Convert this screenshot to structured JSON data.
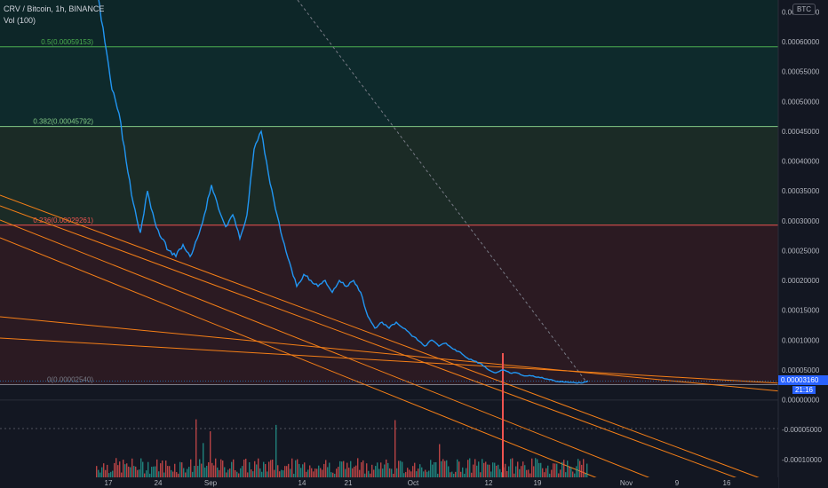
{
  "header": {
    "symbol_line": "CRV / Bitcoin, 1h, BINANCE",
    "volume_line": "Vol (100)"
  },
  "price_axis": {
    "currency_badge": "BTC",
    "current_price": "0.00003160",
    "countdown": "21:16"
  },
  "colors": {
    "background": "#131722",
    "price_line": "#2196f3",
    "trend_lines": "#f57f17",
    "fib_0_5": "#4caf50",
    "fib_0_382": "#81c784",
    "fib_0_236": "#ef5350",
    "fib_zero": "#787b86",
    "vol_up": "#26a69a",
    "vol_down": "#ef5350"
  },
  "chart_data": {
    "type": "line",
    "title": "",
    "xlabel": "",
    "ylabel": "",
    "ylim": [
      -0.00013,
      0.00067
    ],
    "x_tick_labels": [
      "17",
      "24",
      "Sep",
      "14",
      "21",
      "Oct",
      "12",
      "19",
      "Nov",
      "9",
      "16"
    ],
    "y_tick_labels": [
      "0.00065000",
      "0.00060000",
      "0.00055000",
      "0.00050000",
      "0.00045000",
      "0.00040000",
      "0.00035000",
      "0.00030000",
      "0.00025000",
      "0.00020000",
      "0.00015000",
      "0.00010000",
      "0.00005000",
      "0.00000000",
      "-0.00005000",
      "-0.00010000"
    ],
    "y_tick_values": [
      0.00065,
      0.0006,
      0.00055,
      0.0005,
      0.00045,
      0.0004,
      0.00035,
      0.0003,
      0.00025,
      0.0002,
      0.00015,
      0.0001,
      5e-05,
      0,
      -5e-05,
      -0.0001
    ],
    "fib_levels": [
      {
        "label": "0.5(0.00059153)",
        "value": 0.00059153,
        "color": "#4caf50"
      },
      {
        "label": "0.382(0.00045792)",
        "value": 0.00045792,
        "color": "#81c784"
      },
      {
        "label": "0.236(0.00029261)",
        "value": 0.00029261,
        "color": "#ef5350"
      },
      {
        "label": "0(0.00002540)",
        "value": 2.54e-05,
        "color": "#787b86"
      }
    ],
    "series": [
      {
        "values": [
          0.00068,
          0.0006,
          0.00052,
          0.00048,
          0.0004,
          0.00033,
          0.00028,
          0.00035,
          0.0003,
          0.00027,
          0.00025,
          0.00024,
          0.00026,
          0.00024,
          0.00027,
          0.00031,
          0.00036,
          0.00032,
          0.00029,
          0.00031,
          0.00027,
          0.00031,
          0.00042,
          0.00045,
          0.00038,
          0.00032,
          0.00027,
          0.00023,
          0.00019,
          0.00021,
          0.0002,
          0.00019,
          0.0002,
          0.00018,
          0.0002,
          0.00019,
          0.0002,
          0.00018,
          0.00014,
          0.00012,
          0.00013,
          0.00012,
          0.00013,
          0.00012,
          0.00011,
          0.0001,
          9e-05,
          0.0001,
          9e-05,
          9.5e-05,
          8.5e-05,
          8e-05,
          7e-05,
          6.5e-05,
          6e-05,
          5e-05,
          4.5e-05,
          5e-05,
          4.5e-05,
          4.5e-05,
          4e-05,
          4e-05,
          3.8e-05,
          3.5e-05,
          3.3e-05,
          3e-05,
          3e-05,
          2.9e-05,
          2.8e-05,
          3.16e-05
        ]
      }
    ]
  }
}
